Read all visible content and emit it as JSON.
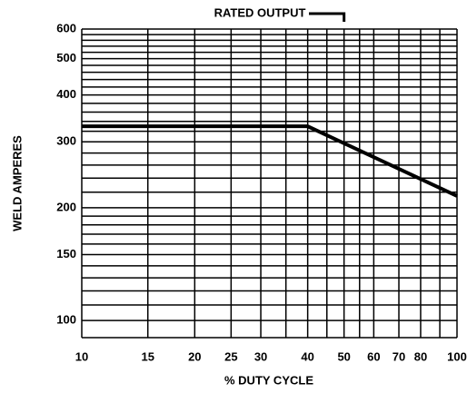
{
  "chart_data": {
    "type": "line",
    "annotation": "RATED OUTPUT",
    "annotation_x": 50,
    "xlabel": "% DUTY CYCLE",
    "ylabel": "WELD AMPERES",
    "xscale": "log",
    "yscale": "log",
    "x": [
      10,
      40,
      100
    ],
    "series": [
      {
        "color": "#000000",
        "values": [
          330,
          330,
          215
        ]
      }
    ],
    "xlim": [
      10,
      100
    ],
    "ylim": [
      90,
      600
    ],
    "xticks": [
      10,
      15,
      20,
      25,
      30,
      40,
      50,
      60,
      70,
      80,
      100
    ],
    "yticks": [
      100,
      150,
      200,
      300,
      400,
      500,
      600
    ],
    "xgrid": [
      10,
      15,
      20,
      25,
      30,
      35,
      40,
      45,
      50,
      55,
      60,
      70,
      80,
      90,
      100
    ],
    "ygrid": [
      90,
      100,
      110,
      120,
      130,
      140,
      150,
      160,
      170,
      180,
      190,
      200,
      220,
      240,
      260,
      280,
      300,
      320,
      340,
      360,
      380,
      400,
      420,
      440,
      460,
      480,
      500,
      520,
      540,
      560,
      580,
      600
    ],
    "grid": true
  }
}
